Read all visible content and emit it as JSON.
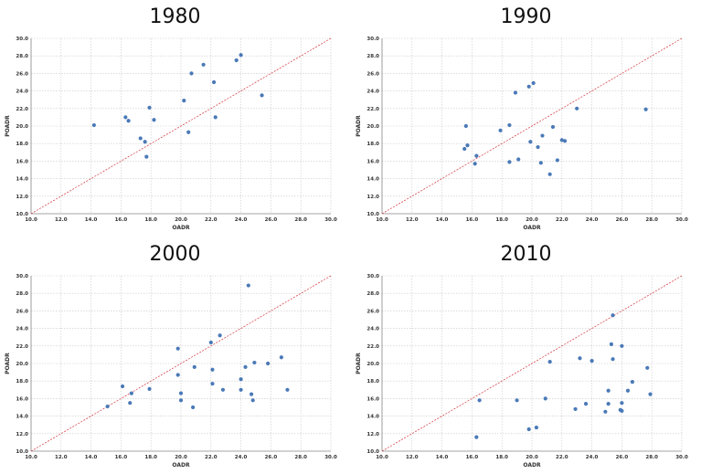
{
  "chart_data": [
    {
      "type": "scatter",
      "title": "1980",
      "xlabel": "OADR",
      "ylabel": "POADR",
      "xlim": [
        10,
        30
      ],
      "ylim": [
        10,
        30
      ],
      "xticks": [
        "10.0",
        "12.0",
        "14.0",
        "16.0",
        "18.0",
        "20.0",
        "22.0",
        "24.0",
        "26.0",
        "28.0",
        "30.0"
      ],
      "yticks": [
        "10.0",
        "12.0",
        "14.0",
        "16.0",
        "18.0",
        "20.0",
        "22.0",
        "24.0",
        "26.0",
        "28.0",
        "30.0"
      ],
      "grid": true,
      "reference_line": "y = x",
      "points": [
        {
          "x": 14.2,
          "y": 20.1
        },
        {
          "x": 16.3,
          "y": 21.0
        },
        {
          "x": 16.5,
          "y": 20.6
        },
        {
          "x": 17.3,
          "y": 18.6
        },
        {
          "x": 17.6,
          "y": 18.2
        },
        {
          "x": 17.7,
          "y": 16.5
        },
        {
          "x": 17.9,
          "y": 22.1
        },
        {
          "x": 18.2,
          "y": 20.7
        },
        {
          "x": 20.2,
          "y": 22.9
        },
        {
          "x": 20.5,
          "y": 19.3
        },
        {
          "x": 20.7,
          "y": 26.0
        },
        {
          "x": 21.5,
          "y": 27.0
        },
        {
          "x": 22.2,
          "y": 25.0
        },
        {
          "x": 22.3,
          "y": 21.0
        },
        {
          "x": 23.7,
          "y": 27.5
        },
        {
          "x": 24.0,
          "y": 28.1
        },
        {
          "x": 25.4,
          "y": 23.5
        }
      ]
    },
    {
      "type": "scatter",
      "title": "1990",
      "xlabel": "OADR",
      "ylabel": "POADR",
      "xlim": [
        10,
        30
      ],
      "ylim": [
        10,
        30
      ],
      "xticks": [
        "10.0",
        "12.0",
        "14.0",
        "16.0",
        "18.0",
        "20.0",
        "22.0",
        "24.0",
        "26.0",
        "28.0",
        "30.0"
      ],
      "yticks": [
        "10.0",
        "12.0",
        "14.0",
        "16.0",
        "18.0",
        "20.0",
        "22.0",
        "24.0",
        "26.0",
        "28.0",
        "30.0"
      ],
      "grid": true,
      "reference_line": "y = x",
      "points": [
        {
          "x": 15.5,
          "y": 17.4
        },
        {
          "x": 15.6,
          "y": 20.0
        },
        {
          "x": 15.7,
          "y": 17.8
        },
        {
          "x": 16.2,
          "y": 15.7
        },
        {
          "x": 16.3,
          "y": 16.6
        },
        {
          "x": 17.9,
          "y": 19.5
        },
        {
          "x": 18.5,
          "y": 20.1
        },
        {
          "x": 18.5,
          "y": 15.9
        },
        {
          "x": 18.9,
          "y": 23.8
        },
        {
          "x": 19.1,
          "y": 16.2
        },
        {
          "x": 19.8,
          "y": 24.5
        },
        {
          "x": 19.9,
          "y": 18.2
        },
        {
          "x": 20.1,
          "y": 24.9
        },
        {
          "x": 20.4,
          "y": 17.6
        },
        {
          "x": 20.6,
          "y": 15.8
        },
        {
          "x": 20.7,
          "y": 18.9
        },
        {
          "x": 21.2,
          "y": 14.5
        },
        {
          "x": 21.4,
          "y": 19.9
        },
        {
          "x": 21.7,
          "y": 16.1
        },
        {
          "x": 22.0,
          "y": 18.4
        },
        {
          "x": 22.2,
          "y": 18.3
        },
        {
          "x": 23.0,
          "y": 22.0
        },
        {
          "x": 27.6,
          "y": 21.9
        }
      ]
    },
    {
      "type": "scatter",
      "title": "2000",
      "xlabel": "OADR",
      "ylabel": "POADR",
      "xlim": [
        10,
        30
      ],
      "ylim": [
        10,
        30
      ],
      "xticks": [
        "10.0",
        "12.0",
        "14.0",
        "16.0",
        "18.0",
        "20.0",
        "22.0",
        "24.0",
        "26.0",
        "28.0",
        "30.0"
      ],
      "yticks": [
        "10.0",
        "12.0",
        "14.0",
        "16.0",
        "18.0",
        "20.0",
        "22.0",
        "24.0",
        "26.0",
        "28.0",
        "30.0"
      ],
      "grid": true,
      "reference_line": "y = x",
      "points": [
        {
          "x": 15.1,
          "y": 15.1
        },
        {
          "x": 16.1,
          "y": 17.4
        },
        {
          "x": 16.6,
          "y": 15.5
        },
        {
          "x": 16.7,
          "y": 16.6
        },
        {
          "x": 17.9,
          "y": 17.1
        },
        {
          "x": 19.8,
          "y": 21.7
        },
        {
          "x": 19.8,
          "y": 18.7
        },
        {
          "x": 20.0,
          "y": 15.8
        },
        {
          "x": 20.0,
          "y": 16.6
        },
        {
          "x": 20.8,
          "y": 15.0
        },
        {
          "x": 20.9,
          "y": 19.6
        },
        {
          "x": 22.0,
          "y": 22.4
        },
        {
          "x": 22.1,
          "y": 19.3
        },
        {
          "x": 22.1,
          "y": 17.7
        },
        {
          "x": 22.6,
          "y": 23.2
        },
        {
          "x": 22.8,
          "y": 17.0
        },
        {
          "x": 24.0,
          "y": 18.2
        },
        {
          "x": 24.0,
          "y": 17.0
        },
        {
          "x": 24.3,
          "y": 19.6
        },
        {
          "x": 24.5,
          "y": 28.9
        },
        {
          "x": 24.7,
          "y": 16.5
        },
        {
          "x": 24.8,
          "y": 15.8
        },
        {
          "x": 24.9,
          "y": 20.1
        },
        {
          "x": 25.8,
          "y": 20.0
        },
        {
          "x": 26.7,
          "y": 20.7
        },
        {
          "x": 27.1,
          "y": 17.0
        }
      ]
    },
    {
      "type": "scatter",
      "title": "2010",
      "xlabel": "OADR",
      "ylabel": "POADR",
      "xlim": [
        10,
        30
      ],
      "ylim": [
        10,
        30
      ],
      "xticks": [
        "10.0",
        "12.0",
        "14.0",
        "16.0",
        "18.0",
        "20.0",
        "22.0",
        "24.0",
        "26.0",
        "28.0",
        "30.0"
      ],
      "yticks": [
        "10.0",
        "12.0",
        "14.0",
        "16.0",
        "18.0",
        "20.0",
        "22.0",
        "24.0",
        "26.0",
        "28.0",
        "30.0"
      ],
      "grid": true,
      "reference_line": "y = x",
      "points": [
        {
          "x": 16.3,
          "y": 11.6
        },
        {
          "x": 16.5,
          "y": 15.8
        },
        {
          "x": 19.0,
          "y": 15.8
        },
        {
          "x": 19.8,
          "y": 12.5
        },
        {
          "x": 20.3,
          "y": 12.7
        },
        {
          "x": 20.9,
          "y": 16.0
        },
        {
          "x": 21.2,
          "y": 20.2
        },
        {
          "x": 22.9,
          "y": 14.8
        },
        {
          "x": 23.2,
          "y": 20.6
        },
        {
          "x": 23.6,
          "y": 15.4
        },
        {
          "x": 24.0,
          "y": 20.3
        },
        {
          "x": 24.9,
          "y": 14.5
        },
        {
          "x": 25.1,
          "y": 15.4
        },
        {
          "x": 25.1,
          "y": 16.9
        },
        {
          "x": 25.3,
          "y": 22.2
        },
        {
          "x": 25.4,
          "y": 20.5
        },
        {
          "x": 25.4,
          "y": 25.5
        },
        {
          "x": 25.9,
          "y": 14.7
        },
        {
          "x": 26.0,
          "y": 14.6
        },
        {
          "x": 26.0,
          "y": 15.5
        },
        {
          "x": 26.0,
          "y": 22.0
        },
        {
          "x": 26.4,
          "y": 16.9
        },
        {
          "x": 26.7,
          "y": 17.9
        },
        {
          "x": 27.7,
          "y": 19.5
        },
        {
          "x": 27.9,
          "y": 16.5
        }
      ]
    }
  ],
  "colors": {
    "point": "#4a79b7",
    "reference_line": "#d9474d",
    "grid": "#c8c8c8",
    "axis": "#8a8a8a"
  }
}
